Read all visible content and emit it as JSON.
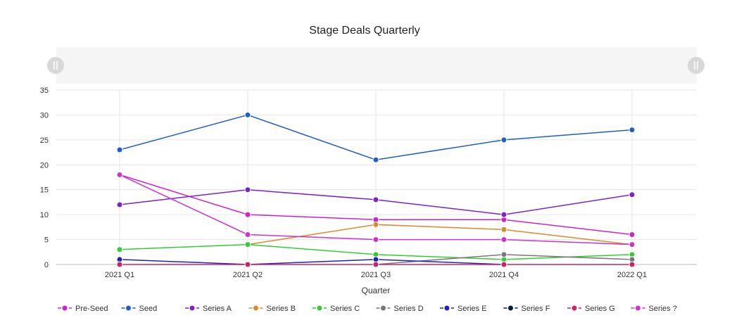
{
  "chart_data": {
    "type": "line",
    "title": "Stage Deals Quarterly",
    "xlabel": "Quarter",
    "ylabel": "",
    "categories": [
      "2021 Q1",
      "2021 Q2",
      "2021 Q3",
      "2021 Q4",
      "2022 Q1"
    ],
    "ylim": [
      0,
      35
    ],
    "yticks": [
      0,
      5,
      10,
      15,
      20,
      25,
      30,
      35
    ],
    "grid": true,
    "legend_position": "bottom",
    "range_selector": true,
    "series": [
      {
        "name": "Pre-Seed",
        "color": "#cc22cc",
        "values": [
          18,
          10,
          9,
          9,
          6
        ]
      },
      {
        "name": "Seed",
        "color": "#1f5fc4",
        "values": [
          23,
          30,
          21,
          25,
          27
        ]
      },
      {
        "name": "Series A",
        "color": "#7b22cc",
        "values": [
          12,
          15,
          13,
          10,
          14
        ]
      },
      {
        "name": "Series B",
        "color": "#d98a2b",
        "values": [
          null,
          4,
          8,
          7,
          4
        ]
      },
      {
        "name": "Series C",
        "color": "#33cc33",
        "values": [
          3,
          4,
          2,
          1,
          2
        ]
      },
      {
        "name": "Series D",
        "color": "#777777",
        "values": [
          null,
          null,
          0,
          2,
          1
        ]
      },
      {
        "name": "Series E",
        "color": "#2222bb",
        "values": [
          1,
          0,
          1,
          0,
          null
        ]
      },
      {
        "name": "Series F",
        "color": "#0a1a3a",
        "values": [
          null,
          null,
          null,
          null,
          null
        ]
      },
      {
        "name": "Series G",
        "color": "#cc2266",
        "values": [
          0,
          0,
          0,
          0,
          0
        ]
      },
      {
        "name": "Series ?",
        "color": "#cc33cc",
        "values": [
          18,
          6,
          5,
          5,
          4
        ]
      }
    ]
  }
}
